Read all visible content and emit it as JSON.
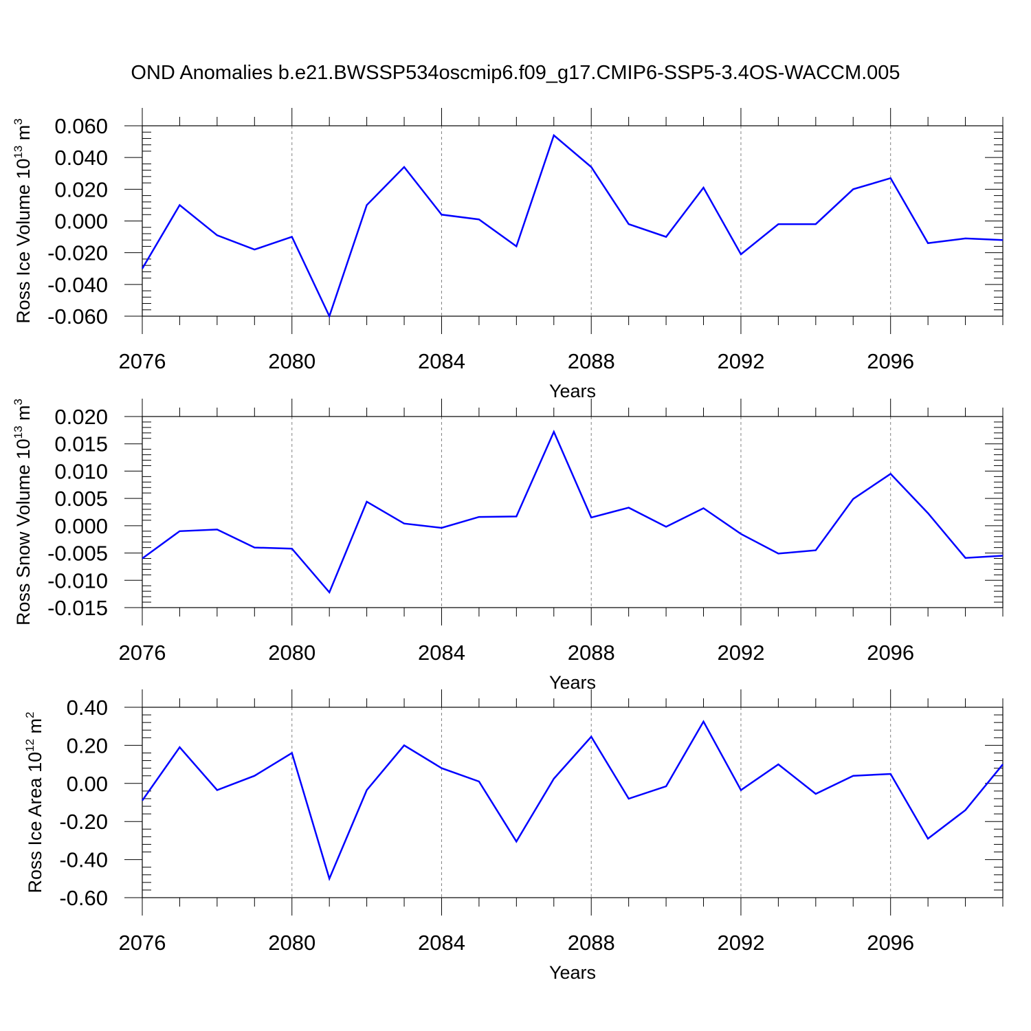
{
  "figure": {
    "title": "OND Anomalies b.e21.BWSSP534oscmip6.f09_g17.CMIP6-SSP5-3.4OS-WACCM.005"
  },
  "colors": {
    "series": "#0000ff",
    "axis": "#000000",
    "grid": "#808080"
  },
  "chart_data": [
    {
      "type": "line",
      "ylabel_main": "Ross Ice Volume 10",
      "ylabel_exp": "13",
      "ylabel_unit": " m",
      "ylabel_unit_exp": "3",
      "xlabel": "Years",
      "xlim": [
        2076,
        2099
      ],
      "ylim": [
        -0.06,
        0.06
      ],
      "yticks": [
        -0.06,
        -0.04,
        -0.02,
        0.0,
        0.02,
        0.04,
        0.06
      ],
      "ytick_labels": [
        "-0.060",
        "-0.040",
        "-0.020",
        "0.000",
        "0.020",
        "0.040",
        "0.060"
      ],
      "xticks": [
        2076,
        2080,
        2084,
        2088,
        2092,
        2096
      ],
      "xtick_labels": [
        "2076",
        "2080",
        "2084",
        "2088",
        "2092",
        "2096"
      ],
      "x": [
        2076,
        2077,
        2078,
        2079,
        2080,
        2081,
        2082,
        2083,
        2084,
        2085,
        2086,
        2087,
        2088,
        2089,
        2090,
        2091,
        2092,
        2093,
        2094,
        2095,
        2096,
        2097,
        2098,
        2099
      ],
      "y": [
        -0.03,
        0.01,
        -0.009,
        -0.018,
        -0.01,
        -0.06,
        0.01,
        0.034,
        0.004,
        0.001,
        -0.016,
        0.054,
        0.034,
        -0.002,
        -0.01,
        0.021,
        -0.021,
        -0.002,
        -0.002,
        0.02,
        0.027,
        -0.014,
        -0.011,
        -0.012
      ]
    },
    {
      "type": "line",
      "ylabel_main": "Ross Snow Volume 10",
      "ylabel_exp": "13",
      "ylabel_unit": " m",
      "ylabel_unit_exp": "3",
      "xlabel": "Years",
      "xlim": [
        2076,
        2099
      ],
      "ylim": [
        -0.015,
        0.02
      ],
      "yticks": [
        -0.015,
        -0.01,
        -0.005,
        0.0,
        0.005,
        0.01,
        0.015,
        0.02
      ],
      "ytick_labels": [
        "-0.015",
        "-0.010",
        "-0.005",
        "0.000",
        "0.005",
        "0.010",
        "0.015",
        "0.020"
      ],
      "xticks": [
        2076,
        2080,
        2084,
        2088,
        2092,
        2096
      ],
      "xtick_labels": [
        "2076",
        "2080",
        "2084",
        "2088",
        "2092",
        "2096"
      ],
      "x": [
        2076,
        2077,
        2078,
        2079,
        2080,
        2081,
        2082,
        2083,
        2084,
        2085,
        2086,
        2087,
        2088,
        2089,
        2090,
        2091,
        2092,
        2093,
        2094,
        2095,
        2096,
        2097,
        2098,
        2099
      ],
      "y": [
        -0.006,
        -0.001,
        -0.0007,
        -0.004,
        -0.0042,
        -0.0122,
        0.0044,
        0.0004,
        -0.0004,
        0.0016,
        0.0017,
        0.0172,
        0.0015,
        0.0033,
        -0.0002,
        0.0032,
        -0.0015,
        -0.0051,
        -0.0045,
        0.0049,
        0.0095,
        0.0023,
        -0.0059,
        -0.0055
      ]
    },
    {
      "type": "line",
      "ylabel_main": "Ross Ice Area 10",
      "ylabel_exp": "12",
      "ylabel_unit": " m",
      "ylabel_unit_exp": "2",
      "xlabel": "Years",
      "xlim": [
        2076,
        2099
      ],
      "ylim": [
        -0.6,
        0.4
      ],
      "yticks": [
        -0.6,
        -0.4,
        -0.2,
        0.0,
        0.2,
        0.4
      ],
      "ytick_labels": [
        "-0.60",
        "-0.40",
        "-0.20",
        "0.00",
        "0.20",
        "0.40"
      ],
      "xticks": [
        2076,
        2080,
        2084,
        2088,
        2092,
        2096
      ],
      "xtick_labels": [
        "2076",
        "2080",
        "2084",
        "2088",
        "2092",
        "2096"
      ],
      "x": [
        2076,
        2077,
        2078,
        2079,
        2080,
        2081,
        2082,
        2083,
        2084,
        2085,
        2086,
        2087,
        2088,
        2089,
        2090,
        2091,
        2092,
        2093,
        2094,
        2095,
        2096,
        2097,
        2098,
        2099
      ],
      "y": [
        -0.09,
        0.19,
        -0.035,
        0.04,
        0.16,
        -0.5,
        -0.035,
        0.2,
        0.08,
        0.01,
        -0.305,
        0.025,
        0.245,
        -0.08,
        -0.015,
        0.325,
        -0.035,
        0.1,
        -0.055,
        0.04,
        0.05,
        -0.29,
        -0.14,
        0.1
      ]
    }
  ]
}
